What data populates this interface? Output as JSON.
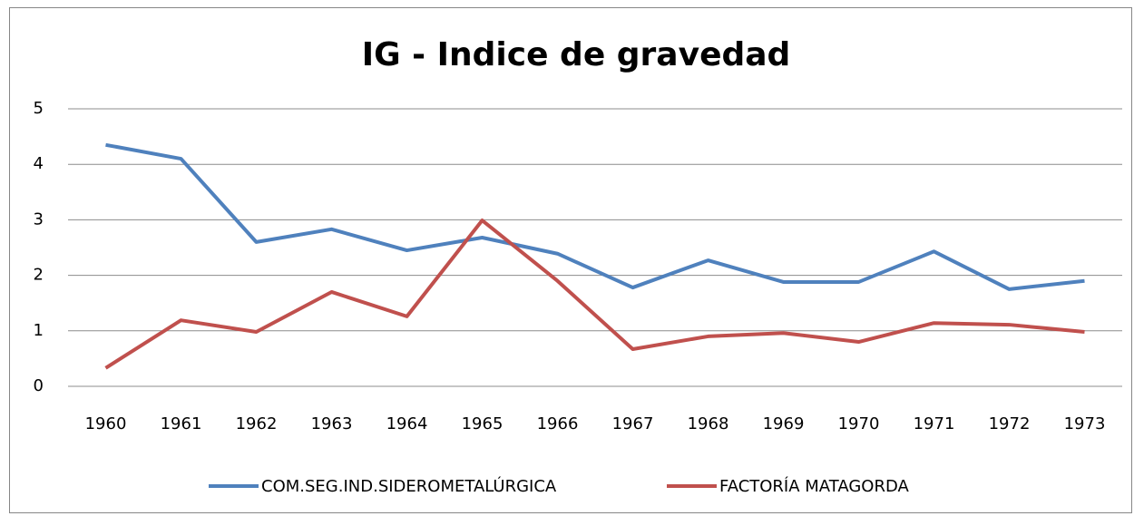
{
  "chart_data": {
    "type": "line",
    "title": "IG - Indice de gravedad",
    "categories": [
      "1960",
      "1961",
      "1962",
      "1963",
      "1964",
      "1965",
      "1966",
      "1967",
      "1968",
      "1969",
      "1970",
      "1971",
      "1972",
      "1973"
    ],
    "series": [
      {
        "name": "COM.SEG.IND.SIDEROMETALÚRGICA",
        "color": "#4f81bd",
        "values": [
          4.35,
          4.1,
          2.6,
          2.83,
          2.45,
          2.68,
          2.39,
          1.78,
          2.27,
          1.88,
          1.88,
          2.43,
          1.75,
          1.9
        ]
      },
      {
        "name": "FACTORÍA MATAGORDA",
        "color": "#c0504d",
        "values": [
          0.33,
          1.19,
          0.98,
          1.7,
          1.26,
          2.99,
          1.9,
          0.67,
          0.9,
          0.96,
          0.8,
          1.14,
          1.11,
          0.98
        ]
      }
    ],
    "ylim": [
      0,
      5
    ],
    "yticks": [
      0,
      1,
      2,
      3,
      4,
      5
    ],
    "grid": true,
    "legend": "bottom"
  }
}
